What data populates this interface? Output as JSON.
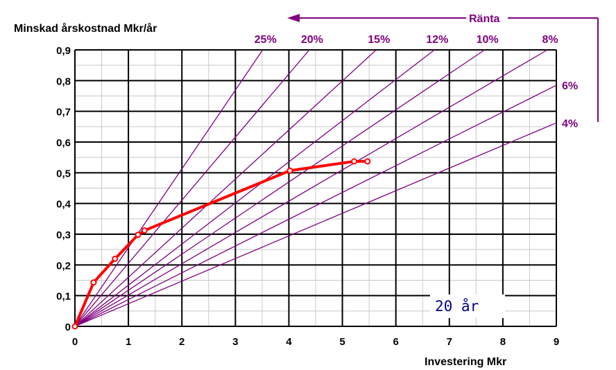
{
  "chart_data": {
    "type": "line",
    "title": "",
    "xlabel": "Investering Mkr",
    "ylabel": "Minskad årskostnad Mkr/år",
    "xlim": [
      0,
      9
    ],
    "ylim": [
      0,
      0.9
    ],
    "x_ticks": [
      "0",
      "1",
      "2",
      "3",
      "4",
      "5",
      "6",
      "7",
      "8",
      "9"
    ],
    "y_ticks": [
      "0",
      "0,1",
      "0,2",
      "0,3",
      "0,4",
      "0,5",
      "0,6",
      "0,7",
      "0,8",
      "0,9"
    ],
    "grid": true,
    "series": [
      {
        "color": "#ff0000",
        "markers": true,
        "x": [
          0,
          0.35,
          0.75,
          1.18,
          1.3,
          4.02,
          5.22,
          5.47
        ],
        "y": [
          0,
          0.143,
          0.22,
          0.298,
          0.312,
          0.507,
          0.537,
          0.537
        ]
      }
    ],
    "rate_group_label": "Ränta",
    "rate_lines": [
      {
        "label": "25%",
        "slope": 0.2564
      },
      {
        "label": "20%",
        "slope": 0.2054
      },
      {
        "label": "15%",
        "slope": 0.1598
      },
      {
        "label": "12%",
        "slope": 0.1339
      },
      {
        "label": "10%",
        "slope": 0.1175
      },
      {
        "label": "8%",
        "slope": 0.1019
      },
      {
        "label": "6%",
        "slope": 0.0872
      },
      {
        "label": "4%",
        "slope": 0.0736
      }
    ],
    "annotation": "20 år",
    "colors": {
      "rate_lines": "#800080",
      "annotation": "#00008b",
      "grid_major": "#000000",
      "grid_minor": "#c8c8c8"
    }
  }
}
